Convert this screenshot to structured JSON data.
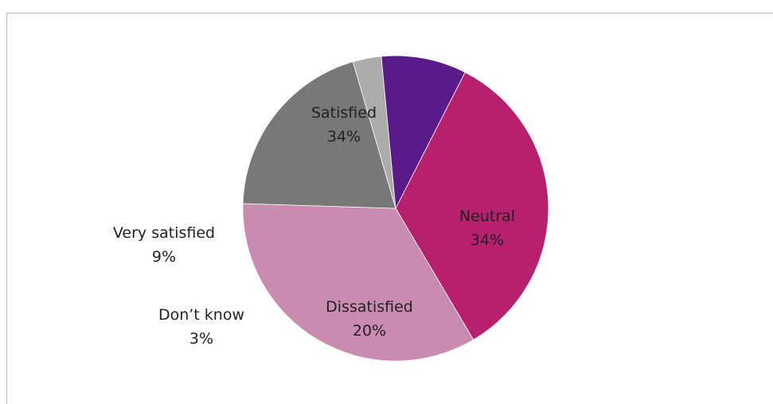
{
  "top_caption": "",
  "chart_data": {
    "type": "pie",
    "title": "",
    "slices": [
      {
        "label": "Satisfied",
        "value": 34,
        "value_label": "34%",
        "color": "#b8206e"
      },
      {
        "label": "Neutral",
        "value": 34,
        "value_label": "34%",
        "color": "#c98cb0"
      },
      {
        "label": "Dissatisfied",
        "value": 20,
        "value_label": "20%",
        "color": "#787878"
      },
      {
        "label": "Don’t know",
        "value": 3,
        "value_label": "3%",
        "color": "#ababab"
      },
      {
        "label": "Very satisfied",
        "value": 9,
        "value_label": "9%",
        "color": "#5a1a8a"
      }
    ],
    "legend": "none"
  }
}
